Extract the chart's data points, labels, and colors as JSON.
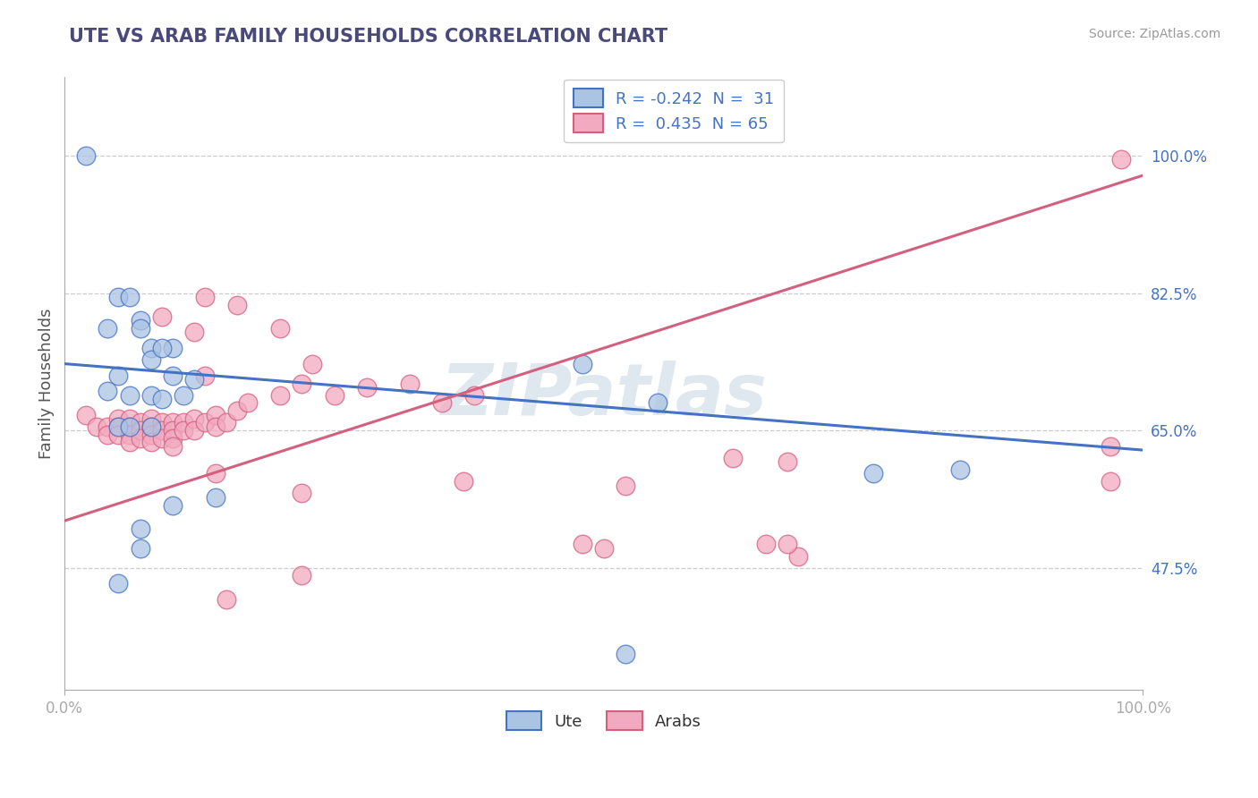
{
  "title": "UTE VS ARAB FAMILY HOUSEHOLDS CORRELATION CHART",
  "source": "Source: ZipAtlas.com",
  "ylabel": "Family Households",
  "yticks_labels": [
    "47.5%",
    "65.0%",
    "82.5%",
    "100.0%"
  ],
  "ytick_vals": [
    0.475,
    0.65,
    0.825,
    1.0
  ],
  "xlim": [
    0.0,
    1.0
  ],
  "ylim": [
    0.32,
    1.1
  ],
  "legend_ute_label": "R = -0.242  N =  31",
  "legend_arab_label": "R =  0.435  N = 65",
  "ute_color": "#aac4e4",
  "arab_color": "#f2aac0",
  "ute_line_color": "#4472c4",
  "arab_line_color": "#d46080",
  "watermark": "ZIPatlas",
  "ute_line": [
    0.0,
    0.735,
    1.0,
    0.625
  ],
  "arab_line": [
    0.0,
    0.535,
    1.0,
    0.975
  ],
  "ute_points": [
    [
      0.02,
      1.0
    ],
    [
      0.05,
      0.82
    ],
    [
      0.07,
      0.79
    ],
    [
      0.08,
      0.755
    ],
    [
      0.06,
      0.82
    ],
    [
      0.1,
      0.755
    ],
    [
      0.05,
      0.72
    ],
    [
      0.08,
      0.74
    ],
    [
      0.1,
      0.72
    ],
    [
      0.12,
      0.715
    ],
    [
      0.04,
      0.78
    ],
    [
      0.07,
      0.78
    ],
    [
      0.09,
      0.755
    ],
    [
      0.04,
      0.7
    ],
    [
      0.06,
      0.695
    ],
    [
      0.08,
      0.695
    ],
    [
      0.09,
      0.69
    ],
    [
      0.11,
      0.695
    ],
    [
      0.05,
      0.655
    ],
    [
      0.06,
      0.655
    ],
    [
      0.08,
      0.655
    ],
    [
      0.07,
      0.525
    ],
    [
      0.07,
      0.5
    ],
    [
      0.1,
      0.555
    ],
    [
      0.14,
      0.565
    ],
    [
      0.48,
      0.735
    ],
    [
      0.55,
      0.685
    ],
    [
      0.75,
      0.595
    ],
    [
      0.83,
      0.6
    ],
    [
      0.05,
      0.455
    ],
    [
      0.52,
      0.365
    ]
  ],
  "arab_points": [
    [
      0.02,
      0.67
    ],
    [
      0.03,
      0.655
    ],
    [
      0.04,
      0.655
    ],
    [
      0.04,
      0.645
    ],
    [
      0.05,
      0.665
    ],
    [
      0.05,
      0.655
    ],
    [
      0.05,
      0.645
    ],
    [
      0.06,
      0.665
    ],
    [
      0.06,
      0.655
    ],
    [
      0.06,
      0.645
    ],
    [
      0.06,
      0.635
    ],
    [
      0.07,
      0.66
    ],
    [
      0.07,
      0.65
    ],
    [
      0.07,
      0.64
    ],
    [
      0.08,
      0.665
    ],
    [
      0.08,
      0.655
    ],
    [
      0.08,
      0.645
    ],
    [
      0.08,
      0.635
    ],
    [
      0.09,
      0.66
    ],
    [
      0.09,
      0.65
    ],
    [
      0.09,
      0.64
    ],
    [
      0.1,
      0.66
    ],
    [
      0.1,
      0.65
    ],
    [
      0.1,
      0.64
    ],
    [
      0.1,
      0.63
    ],
    [
      0.11,
      0.66
    ],
    [
      0.11,
      0.65
    ],
    [
      0.12,
      0.665
    ],
    [
      0.12,
      0.65
    ],
    [
      0.13,
      0.66
    ],
    [
      0.14,
      0.67
    ],
    [
      0.14,
      0.655
    ],
    [
      0.15,
      0.66
    ],
    [
      0.16,
      0.675
    ],
    [
      0.17,
      0.685
    ],
    [
      0.2,
      0.695
    ],
    [
      0.22,
      0.71
    ],
    [
      0.25,
      0.695
    ],
    [
      0.28,
      0.705
    ],
    [
      0.32,
      0.71
    ],
    [
      0.09,
      0.795
    ],
    [
      0.13,
      0.82
    ],
    [
      0.12,
      0.775
    ],
    [
      0.16,
      0.81
    ],
    [
      0.2,
      0.78
    ],
    [
      0.13,
      0.72
    ],
    [
      0.23,
      0.735
    ],
    [
      0.35,
      0.685
    ],
    [
      0.38,
      0.695
    ],
    [
      0.37,
      0.585
    ],
    [
      0.22,
      0.57
    ],
    [
      0.52,
      0.58
    ],
    [
      0.48,
      0.505
    ],
    [
      0.62,
      0.615
    ],
    [
      0.67,
      0.61
    ],
    [
      0.68,
      0.49
    ],
    [
      0.97,
      0.63
    ],
    [
      0.97,
      0.585
    ],
    [
      0.98,
      0.995
    ],
    [
      0.15,
      0.435
    ],
    [
      0.22,
      0.465
    ],
    [
      0.14,
      0.595
    ],
    [
      0.5,
      0.5
    ],
    [
      0.65,
      0.505
    ],
    [
      0.67,
      0.505
    ]
  ]
}
